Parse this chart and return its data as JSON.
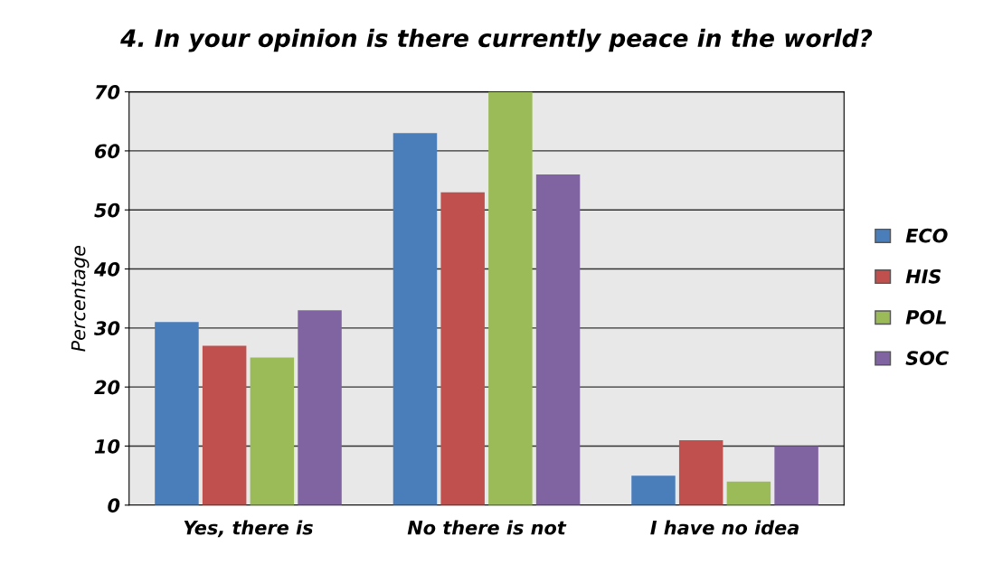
{
  "chart_data": {
    "type": "bar",
    "title": "4. In your opinion is there currently peace in the world?",
    "ylabel": "Percentage",
    "categories": [
      "Yes, there is",
      "No there is not",
      "I have no idea"
    ],
    "series": [
      {
        "name": "ECO",
        "color": "#4a7ebb",
        "values": [
          31,
          63,
          5
        ]
      },
      {
        "name": "HIS",
        "color": "#c0504d",
        "values": [
          27,
          53,
          11
        ]
      },
      {
        "name": "POL",
        "color": "#9bbb59",
        "values": [
          25,
          70,
          4
        ]
      },
      {
        "name": "SOC",
        "color": "#8064a2",
        "values": [
          33,
          56,
          10
        ]
      }
    ],
    "ylim": [
      0,
      70
    ],
    "yticks": [
      0,
      10,
      20,
      30,
      40,
      50,
      60,
      70
    ],
    "grid": "y",
    "legend": "right"
  }
}
